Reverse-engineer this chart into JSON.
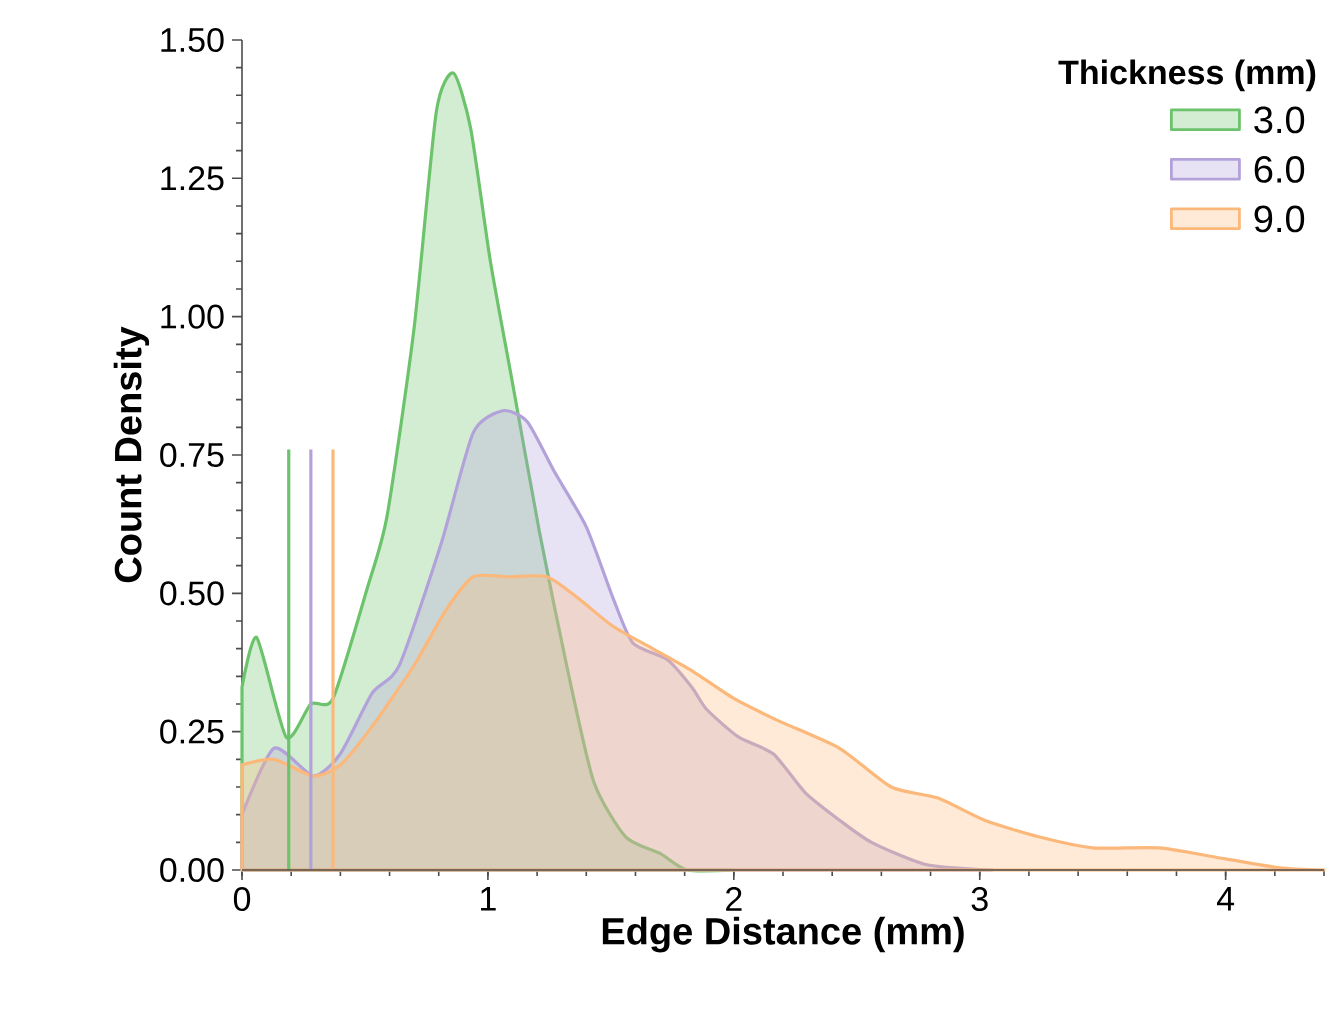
{
  "chart_data": {
    "type": "area",
    "xlabel": "Edge Distance (mm)",
    "ylabel": "Count Density",
    "legend_title": "Thickness (mm)",
    "legend": "top right",
    "xlim": [
      0,
      4.4
    ],
    "ylim": [
      0,
      1.5
    ],
    "xticks": [
      0,
      1,
      2,
      3,
      4
    ],
    "yticks": [
      {
        "value": 0,
        "label": "0.00"
      },
      {
        "value": 0.25,
        "label": "0.25"
      },
      {
        "value": 0.5,
        "label": "0.50"
      },
      {
        "value": 0.75,
        "label": "0.75"
      },
      {
        "value": 1.0,
        "label": "1.00"
      },
      {
        "value": 1.25,
        "label": "1.25"
      },
      {
        "value": 1.5,
        "label": "1.50"
      }
    ],
    "series": [
      {
        "name": "3.0",
        "color": "#6cc36c",
        "x": [
          0,
          0.06,
          0.18,
          0.28,
          0.37,
          0.51,
          0.59,
          0.7,
          0.79,
          0.86,
          0.93,
          1.01,
          1.1,
          1.21,
          1.32,
          1.43,
          1.56,
          1.7,
          1.81,
          2.0
        ],
        "values": [
          0.33,
          0.42,
          0.24,
          0.3,
          0.31,
          0.51,
          0.64,
          0.98,
          1.37,
          1.44,
          1.34,
          1.1,
          0.88,
          0.61,
          0.37,
          0.16,
          0.06,
          0.03,
          0,
          0
        ]
      },
      {
        "name": "6.0",
        "color": "#b3a2d9",
        "x": [
          0,
          0.13,
          0.29,
          0.4,
          0.53,
          0.64,
          0.81,
          0.94,
          1.06,
          1.16,
          1.27,
          1.4,
          1.51,
          1.59,
          1.73,
          1.83,
          1.89,
          2.02,
          2.16,
          2.29,
          2.43,
          2.56,
          2.78,
          3.05
        ],
        "values": [
          0.1,
          0.22,
          0.17,
          0.21,
          0.32,
          0.37,
          0.59,
          0.79,
          0.83,
          0.81,
          0.72,
          0.62,
          0.49,
          0.41,
          0.38,
          0.33,
          0.29,
          0.24,
          0.21,
          0.14,
          0.09,
          0.05,
          0.01,
          0
        ]
      },
      {
        "name": "9.0",
        "color": "#fcb87a",
        "x": [
          0,
          0.13,
          0.29,
          0.4,
          0.53,
          0.7,
          0.83,
          0.94,
          1.08,
          1.24,
          1.37,
          1.51,
          1.67,
          1.83,
          2.0,
          2.18,
          2.43,
          2.64,
          2.83,
          3.02,
          3.24,
          3.46,
          3.73,
          4.0,
          4.22,
          4.4
        ],
        "values": [
          0.19,
          0.2,
          0.17,
          0.19,
          0.26,
          0.37,
          0.47,
          0.53,
          0.53,
          0.53,
          0.49,
          0.44,
          0.4,
          0.36,
          0.31,
          0.27,
          0.22,
          0.15,
          0.13,
          0.09,
          0.06,
          0.04,
          0.04,
          0.02,
          0.004,
          0
        ]
      },
      {
        "type": "line",
        "color": "#6cc36c",
        "x": [
          0.19,
          0.19
        ],
        "values": [
          0,
          0.76
        ]
      },
      {
        "type": "line",
        "color": "#b3a2d9",
        "x": [
          0.28,
          0.28
        ],
        "values": [
          0,
          0.76
        ]
      },
      {
        "type": "line",
        "color": "#fcb87a",
        "x": [
          0.37,
          0.37
        ],
        "values": [
          0,
          0.76
        ]
      }
    ]
  }
}
